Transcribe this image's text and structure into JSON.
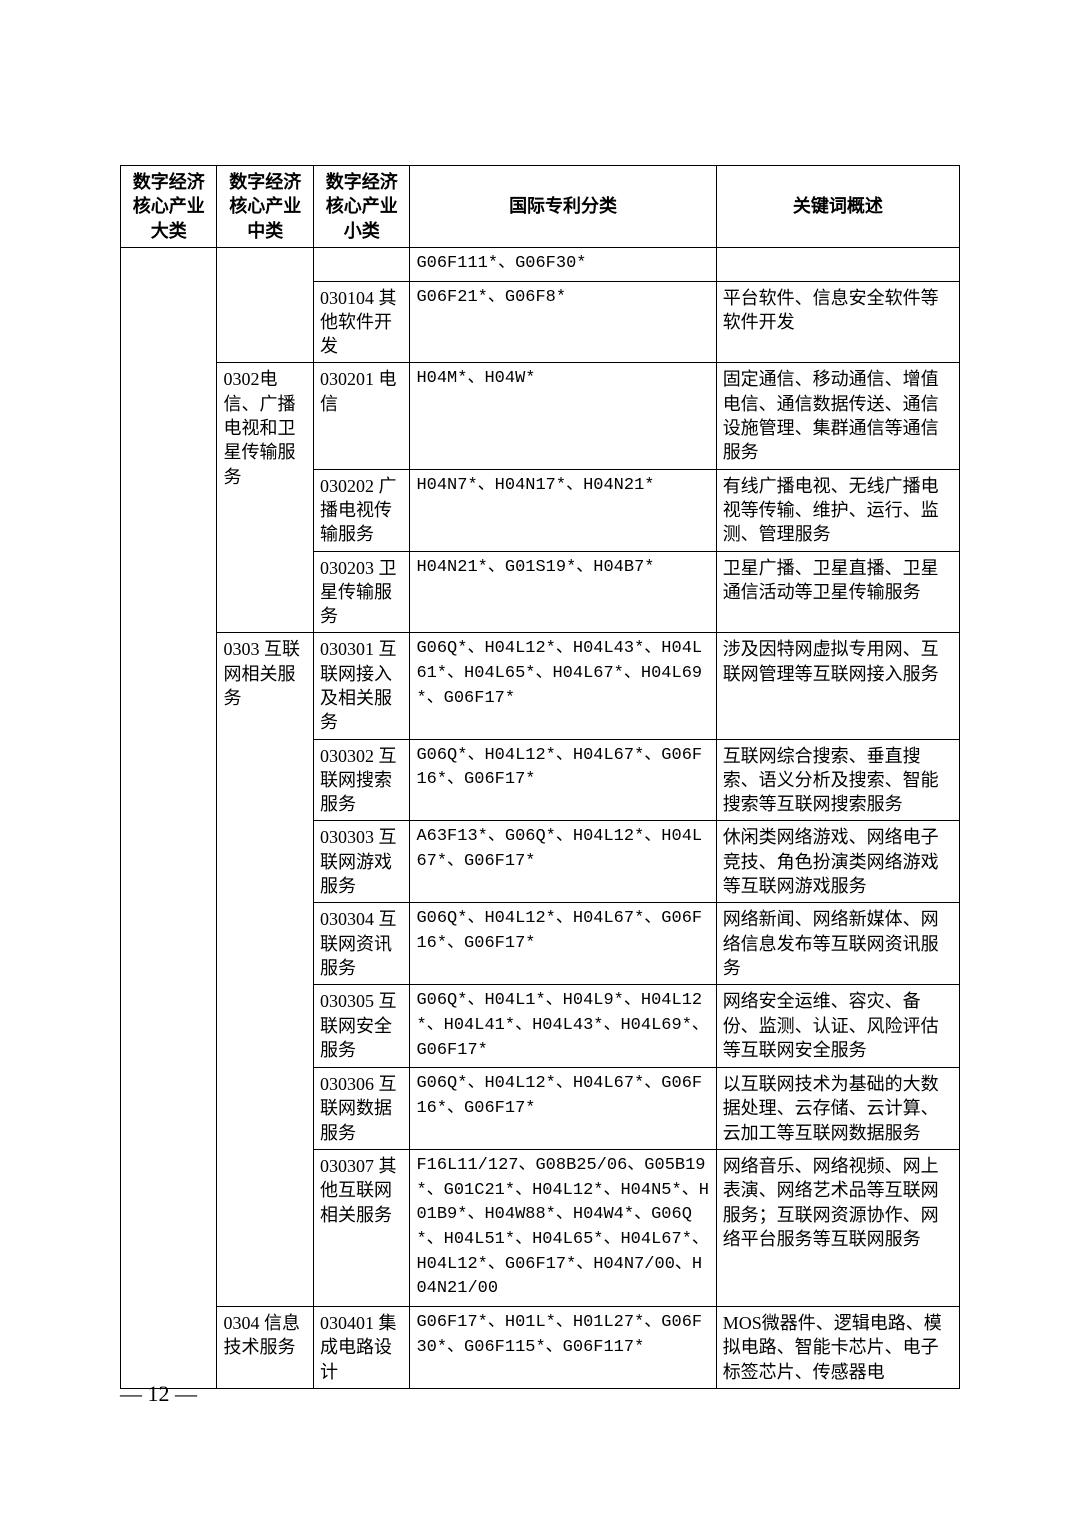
{
  "headers": {
    "col1": "数字经济核心产业大类",
    "col2": "数字经济核心产业中类",
    "col3": "数字经济核心产业小类",
    "col4": "国际专利分类",
    "col5": "关键词概述"
  },
  "rows": [
    {
      "col1": "",
      "col2": "",
      "col3": "",
      "col4": "G06F111*、G06F30*",
      "col5": ""
    },
    {
      "col1": "",
      "col2": "",
      "col3": "030104 其他软件开发",
      "col4": "G06F21*、G06F8*",
      "col5": "平台软件、信息安全软件等软件开发"
    },
    {
      "col1": "",
      "col2": "0302电信、广播电视和卫星传输服务",
      "col3": "030201 电信",
      "col4": "H04M*、H04W*",
      "col5": "固定通信、移动通信、增值电信、通信数据传送、通信设施管理、集群通信等通信服务"
    },
    {
      "col1": "",
      "col2": "",
      "col3": "030202 广播电视传输服务",
      "col4": "H04N7*、H04N17*、H04N21*",
      "col5": "有线广播电视、无线广播电视等传输、维护、运行、监测、管理服务"
    },
    {
      "col1": "",
      "col2": "",
      "col3": "030203 卫星传输服务",
      "col4": "H04N21*、G01S19*、H04B7*",
      "col5": "卫星广播、卫星直播、卫星通信活动等卫星传输服务"
    },
    {
      "col1": "",
      "col2": "0303 互联网相关服务",
      "col3": "030301 互联网接入及相关服务",
      "col4": "G06Q*、H04L12*、H04L43*、H04L61*、H04L65*、H04L67*、H04L69*、G06F17*",
      "col5": "涉及因特网虚拟专用网、互联网管理等互联网接入服务"
    },
    {
      "col1": "",
      "col2": "",
      "col3": "030302 互联网搜索服务",
      "col4": "G06Q*、H04L12*、H04L67*、G06F16*、G06F17*",
      "col5": "互联网综合搜索、垂直搜索、语义分析及搜索、智能搜索等互联网搜索服务"
    },
    {
      "col1": "",
      "col2": "",
      "col3": "030303 互联网游戏服务",
      "col4": "A63F13*、G06Q*、H04L12*、H04L67*、G06F17*",
      "col5": "休闲类网络游戏、网络电子竞技、角色扮演类网络游戏等互联网游戏服务"
    },
    {
      "col1": "",
      "col2": "",
      "col3": "030304 互联网资讯服务",
      "col4": "G06Q*、H04L12*、H04L67*、G06F16*、G06F17*",
      "col5": "网络新闻、网络新媒体、网络信息发布等互联网资讯服务"
    },
    {
      "col1": "",
      "col2": "",
      "col3": "030305 互联网安全服务",
      "col4": "G06Q*、H04L1*、H04L9*、H04L12*、H04L41*、H04L43*、H04L69*、G06F17*",
      "col5": "网络安全运维、容灾、备份、监测、认证、风险评估等互联网安全服务"
    },
    {
      "col1": "",
      "col2": "",
      "col3": "030306 互联网数据服务",
      "col4": "G06Q*、H04L12*、H04L67*、G06F16*、G06F17*",
      "col5": "以互联网技术为基础的大数据处理、云存储、云计算、云加工等互联网数据服务"
    },
    {
      "col1": "",
      "col2": "",
      "col3": "030307 其他互联网相关服务",
      "col4": "F16L11/127、G08B25/06、G05B19*、G01C21*、H04L12*、H04N5*、H01B9*、H04W88*、H04W4*、G06Q*、H04L51*、H04L65*、H04L67*、H04L12*、G06F17*、H04N7/00、H04N21/00",
      "col5": "网络音乐、网络视频、网上表演、网络艺术品等互联网服务；互联网资源协作、网络平台服务等互联网服务"
    },
    {
      "col1": "",
      "col2": "0304 信息技术服务",
      "col3": "030401 集成电路设计",
      "col4": "G06F17*、H01L*、H01L27*、G06F30*、G06F115*、G06F117*",
      "col5": "MOS微器件、逻辑电路、模拟电路、智能卡芯片、电子标签芯片、传感器电"
    }
  ],
  "pageNumber": "— 12 —"
}
